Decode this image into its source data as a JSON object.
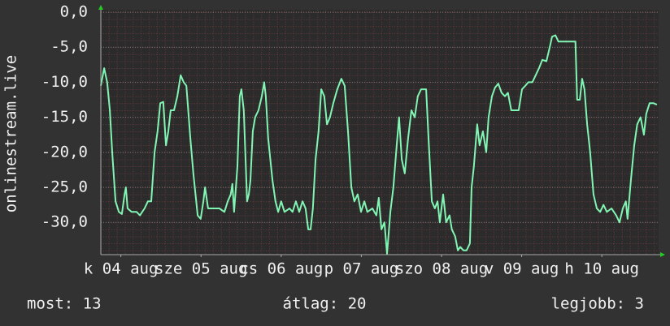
{
  "chart_data": {
    "type": "line",
    "y_label": "onlinestream.live",
    "xlim": [
      0,
      167
    ],
    "xticks": [
      {
        "value": 6,
        "label": "k 04 aug"
      },
      {
        "value": 30,
        "label": "sze 05 aug"
      },
      {
        "value": 54,
        "label": "cs 06 aug"
      },
      {
        "value": 78,
        "label": "p 07 aug"
      },
      {
        "value": 102,
        "label": "szo 08 aug"
      },
      {
        "value": 126,
        "label": "v 09 aug"
      },
      {
        "value": 150,
        "label": "h 10 aug"
      }
    ],
    "ylim": [
      -34.6,
      0
    ],
    "yticks": [
      {
        "value": 0,
        "label": "0,0"
      },
      {
        "value": -5,
        "label": "-5,0"
      },
      {
        "value": -10,
        "label": "-10,0"
      },
      {
        "value": -15,
        "label": "-15,0"
      },
      {
        "value": -20,
        "label": "-20,0"
      },
      {
        "value": -25,
        "label": "-25,0"
      },
      {
        "value": -30,
        "label": "-30,0"
      }
    ],
    "grid": true,
    "x": [
      0,
      1.0,
      1.9,
      2.7,
      3.4,
      4.4,
      5.4,
      6.3,
      7.1,
      7.5,
      8.0,
      9.2,
      10.7,
      11.7,
      13.1,
      14.1,
      15.1,
      16.1,
      17.0,
      17.8,
      18.7,
      19.5,
      20.2,
      20.9,
      21.9,
      22.9,
      23.9,
      24.8,
      25.6,
      26.8,
      27.7,
      29.0,
      29.9,
      30.7,
      31.2,
      32.1,
      33.6,
      35.5,
      37.0,
      38.0,
      38.9,
      39.4,
      39.9,
      40.9,
      41.6,
      42.1,
      42.8,
      43.8,
      44.3,
      44.8,
      45.5,
      46.2,
      47.2,
      48.2,
      48.9,
      49.4,
      50.1,
      51.4,
      52.3,
      53.1,
      54.0,
      55.0,
      56.5,
      57.4,
      58.4,
      59.4,
      60.4,
      61.3,
      62.1,
      62.8,
      63.5,
      64.3,
      65.2,
      66.0,
      66.9,
      67.7,
      68.6,
      69.6,
      70.8,
      72.0,
      73.0,
      74.0,
      75.0,
      75.9,
      76.9,
      77.9,
      78.9,
      79.8,
      81.3,
      82.5,
      83.2,
      84.0,
      84.9,
      85.7,
      86.7,
      87.6,
      88.6,
      89.3,
      90.1,
      91.0,
      92.0,
      93.0,
      94.0,
      94.9,
      95.9,
      97.4,
      98.1,
      99.1,
      100.0,
      100.8,
      101.5,
      102.5,
      103.4,
      104.4,
      105.1,
      106.1,
      106.9,
      107.6,
      108.6,
      109.5,
      110.5,
      111.0,
      111.7,
      112.7,
      113.4,
      114.4,
      115.4,
      116.1,
      117.1,
      118.0,
      119.0,
      120.0,
      121.0,
      121.9,
      122.9,
      124.1,
      125.1,
      126.1,
      127.1,
      128.0,
      129.2,
      130.2,
      131.2,
      132.2,
      133.4,
      134.4,
      135.1,
      136.1,
      137.0,
      140.2,
      142.1,
      142.6,
      143.4,
      144.1,
      144.8,
      145.6,
      146.5,
      147.5,
      148.5,
      149.5,
      150.5,
      151.5,
      152.9,
      154.3,
      155.3,
      156.3,
      157.2,
      157.7,
      158.7,
      159.7,
      160.6,
      161.6,
      162.6,
      163.3,
      164.3,
      165.5,
      166.5
    ],
    "series": [
      {
        "color": "#80f5b4",
        "values": [
          -10.5,
          -8,
          -10,
          -14,
          -20,
          -27,
          -28.5,
          -28.8,
          -26,
          -25,
          -28,
          -28.5,
          -28.5,
          -29,
          -28,
          -27,
          -27,
          -20,
          -17,
          -13,
          -12.8,
          -19,
          -17,
          -14,
          -14,
          -12,
          -9,
          -10,
          -10.5,
          -18,
          -23,
          -29,
          -29.5,
          -27,
          -25,
          -28,
          -28,
          -28,
          -28.5,
          -27,
          -26,
          -24.5,
          -28.5,
          -22,
          -12,
          -11,
          -14,
          -27,
          -26,
          -24,
          -17,
          -15,
          -14,
          -12,
          -10,
          -12,
          -18,
          -24,
          -27,
          -28.5,
          -27,
          -28.5,
          -28,
          -28.5,
          -27,
          -28.5,
          -27,
          -28,
          -31,
          -31,
          -28,
          -21,
          -17,
          -11,
          -12,
          -16,
          -15,
          -13,
          -11,
          -9.5,
          -10.5,
          -17,
          -25,
          -27,
          -26,
          -28.5,
          -27,
          -28.5,
          -28,
          -29,
          -26.5,
          -31,
          -30,
          -34.5,
          -28.5,
          -25,
          -19,
          -15,
          -21,
          -23,
          -18,
          -14,
          -15,
          -12,
          -11,
          -11,
          -18,
          -27,
          -28,
          -27,
          -30,
          -26,
          -30,
          -29,
          -31,
          -32,
          -34,
          -33.5,
          -34,
          -34,
          -33,
          -25,
          -22,
          -16,
          -19,
          -17,
          -20,
          -15,
          -12,
          -10.8,
          -10.2,
          -11.5,
          -12,
          -11.5,
          -14,
          -14,
          -14,
          -11,
          -10.5,
          -10,
          -10,
          -9,
          -8,
          -6.8,
          -7,
          -5,
          -3.5,
          -3.3,
          -4.2,
          -4.2,
          -4.2,
          -12.5,
          -12.5,
          -9.5,
          -11,
          -16,
          -20,
          -26,
          -28,
          -28.5,
          -27.5,
          -28.5,
          -28,
          -29,
          -30,
          -28,
          -27,
          -29.5,
          -24,
          -19,
          -16,
          -15,
          -17.5,
          -14.5,
          -13,
          -13,
          -13.2
        ]
      }
    ]
  },
  "legend": {
    "current": "most: 13",
    "average": "átlag: 20",
    "best": "legjobb: 3"
  }
}
